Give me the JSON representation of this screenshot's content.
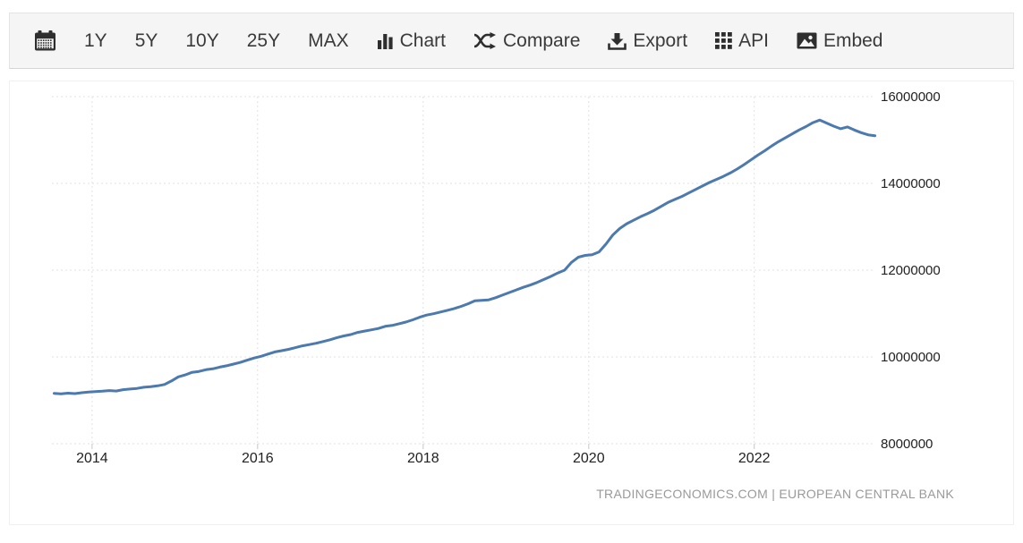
{
  "toolbar": {
    "buttons": [
      {
        "id": "calendar",
        "label": "",
        "icon": "calendar"
      },
      {
        "id": "1y",
        "label": "1Y"
      },
      {
        "id": "5y",
        "label": "5Y"
      },
      {
        "id": "10y",
        "label": "10Y"
      },
      {
        "id": "25y",
        "label": "25Y"
      },
      {
        "id": "max",
        "label": "MAX"
      },
      {
        "id": "chart",
        "label": "Chart",
        "icon": "bar-chart"
      },
      {
        "id": "compare",
        "label": "Compare",
        "icon": "shuffle"
      },
      {
        "id": "export",
        "label": "Export",
        "icon": "download"
      },
      {
        "id": "api",
        "label": "API",
        "icon": "grid"
      },
      {
        "id": "embed",
        "label": "Embed",
        "icon": "image"
      }
    ]
  },
  "chart_data": {
    "type": "line",
    "title": "",
    "xlabel": "",
    "ylabel": "",
    "line_color": "#4c79ae",
    "grid": "dotted",
    "ylim": [
      8000000,
      16000000
    ],
    "y_ticks": [
      8000000,
      10000000,
      12000000,
      14000000,
      16000000
    ],
    "x_ticks": [
      2014,
      2016,
      2018,
      2020,
      2022
    ],
    "x_range": [
      2013.515,
      2023.43
    ],
    "frequency": "monthly",
    "start_period": "2013-07",
    "values": [
      9160000,
      9150000,
      9165000,
      9155000,
      9175000,
      9190000,
      9200000,
      9210000,
      9225000,
      9215000,
      9245000,
      9260000,
      9275000,
      9300000,
      9315000,
      9335000,
      9365000,
      9445000,
      9540000,
      9585000,
      9645000,
      9665000,
      9705000,
      9725000,
      9765000,
      9795000,
      9835000,
      9875000,
      9925000,
      9975000,
      10015000,
      10065000,
      10115000,
      10145000,
      10175000,
      10215000,
      10255000,
      10285000,
      10315000,
      10355000,
      10395000,
      10445000,
      10485000,
      10515000,
      10565000,
      10595000,
      10625000,
      10655000,
      10705000,
      10725000,
      10765000,
      10805000,
      10855000,
      10915000,
      10965000,
      10995000,
      11035000,
      11075000,
      11115000,
      11165000,
      11225000,
      11295000,
      11305000,
      11315000,
      11365000,
      11425000,
      11485000,
      11545000,
      11605000,
      11655000,
      11715000,
      11785000,
      11855000,
      11935000,
      12000000,
      12180000,
      12300000,
      12340000,
      12355000,
      12420000,
      12600000,
      12810000,
      12960000,
      13070000,
      13150000,
      13230000,
      13300000,
      13380000,
      13470000,
      13560000,
      13630000,
      13700000,
      13780000,
      13860000,
      13940000,
      14020000,
      14090000,
      14160000,
      14240000,
      14330000,
      14430000,
      14540000,
      14650000,
      14750000,
      14860000,
      14960000,
      15050000,
      15140000,
      15230000,
      15310000,
      15400000,
      15460000,
      15390000,
      15320000,
      15260000,
      15300000,
      15230000,
      15170000,
      15120000,
      15100000
    ]
  },
  "attribution": {
    "text": "TRADINGECONOMICS.COM | EUROPEAN CENTRAL BANK"
  }
}
